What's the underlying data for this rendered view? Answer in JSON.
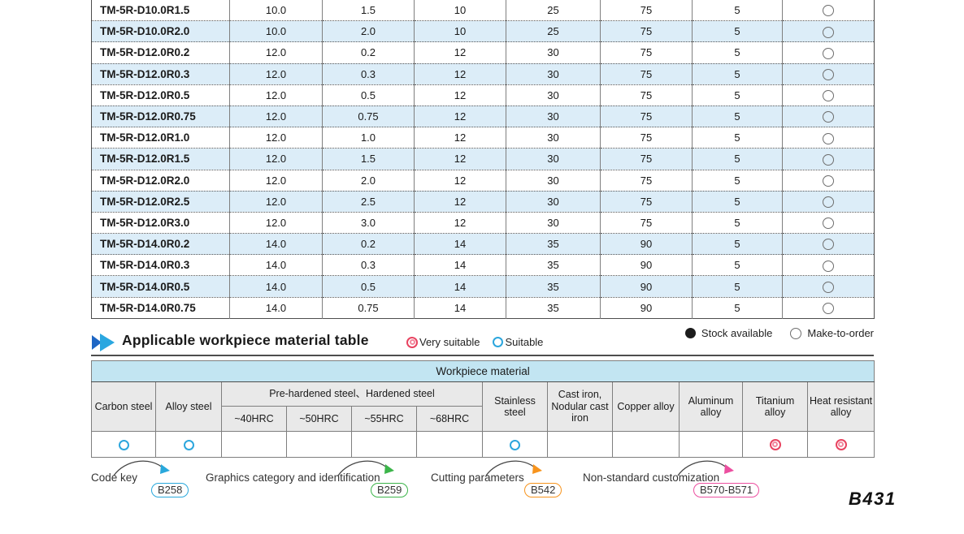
{
  "main_table": {
    "rows": [
      {
        "cells": [
          "TM-5R-D10.0R1.5",
          "10.0",
          "1.5",
          "10",
          "25",
          "75",
          "5"
        ],
        "stock": "make_to_order"
      },
      {
        "cells": [
          "TM-5R-D10.0R2.0",
          "10.0",
          "2.0",
          "10",
          "25",
          "75",
          "5"
        ],
        "stock": "make_to_order"
      },
      {
        "cells": [
          "TM-5R-D12.0R0.2",
          "12.0",
          "0.2",
          "12",
          "30",
          "75",
          "5"
        ],
        "stock": "make_to_order"
      },
      {
        "cells": [
          "TM-5R-D12.0R0.3",
          "12.0",
          "0.3",
          "12",
          "30",
          "75",
          "5"
        ],
        "stock": "make_to_order"
      },
      {
        "cells": [
          "TM-5R-D12.0R0.5",
          "12.0",
          "0.5",
          "12",
          "30",
          "75",
          "5"
        ],
        "stock": "make_to_order"
      },
      {
        "cells": [
          "TM-5R-D12.0R0.75",
          "12.0",
          "0.75",
          "12",
          "30",
          "75",
          "5"
        ],
        "stock": "make_to_order"
      },
      {
        "cells": [
          "TM-5R-D12.0R1.0",
          "12.0",
          "1.0",
          "12",
          "30",
          "75",
          "5"
        ],
        "stock": "make_to_order"
      },
      {
        "cells": [
          "TM-5R-D12.0R1.5",
          "12.0",
          "1.5",
          "12",
          "30",
          "75",
          "5"
        ],
        "stock": "make_to_order"
      },
      {
        "cells": [
          "TM-5R-D12.0R2.0",
          "12.0",
          "2.0",
          "12",
          "30",
          "75",
          "5"
        ],
        "stock": "make_to_order"
      },
      {
        "cells": [
          "TM-5R-D12.0R2.5",
          "12.0",
          "2.5",
          "12",
          "30",
          "75",
          "5"
        ],
        "stock": "make_to_order"
      },
      {
        "cells": [
          "TM-5R-D12.0R3.0",
          "12.0",
          "3.0",
          "12",
          "30",
          "75",
          "5"
        ],
        "stock": "make_to_order"
      },
      {
        "cells": [
          "TM-5R-D14.0R0.2",
          "14.0",
          "0.2",
          "14",
          "35",
          "90",
          "5"
        ],
        "stock": "make_to_order"
      },
      {
        "cells": [
          "TM-5R-D14.0R0.3",
          "14.0",
          "0.3",
          "14",
          "35",
          "90",
          "5"
        ],
        "stock": "make_to_order"
      },
      {
        "cells": [
          "TM-5R-D14.0R0.5",
          "14.0",
          "0.5",
          "14",
          "35",
          "90",
          "5"
        ],
        "stock": "make_to_order"
      },
      {
        "cells": [
          "TM-5R-D14.0R0.75",
          "14.0",
          "0.75",
          "14",
          "35",
          "90",
          "5"
        ],
        "stock": "make_to_order"
      }
    ]
  },
  "section": {
    "title": "Applicable workpiece material table",
    "legend": {
      "very_suitable": "Very suitable",
      "suitable": "Suitable"
    },
    "stock_legend": {
      "available": "Stock available",
      "make_to_order": "Make-to-order"
    }
  },
  "workpiece_table": {
    "title": "Workpiece material",
    "col_carbon": "Carbon steel",
    "col_alloy": "Alloy steel",
    "group_prehardened": "Pre-hardened steel、Hardened steel",
    "sub_hrc": [
      "~40HRC",
      "~50HRC",
      "~55HRC",
      "~68HRC"
    ],
    "col_stainless": "Stainless steel",
    "col_cast_iron": "Cast iron, Nodular cast iron",
    "col_copper": "Copper alloy",
    "col_aluminum": "Aluminum alloy",
    "col_titanium": "Titanium alloy",
    "col_heat": "Heat resistant alloy",
    "marks": [
      "suitable",
      "suitable",
      "",
      "",
      "",
      "",
      "suitable",
      "",
      "",
      "",
      "very_suitable",
      "very_suitable"
    ]
  },
  "footer": {
    "links": [
      {
        "label": "Code key",
        "badge": "B258",
        "color": "#29a8dc"
      },
      {
        "label": "Graphics category and identification",
        "badge": "B259",
        "color": "#3cb54a"
      },
      {
        "label": "Cutting parameters",
        "badge": "B542",
        "color": "#f7941d"
      },
      {
        "label": "Non-standard customization",
        "badge": "B570-B571",
        "color": "#ec4fa0"
      }
    ],
    "page_number": "B431"
  },
  "colors": {
    "row_stripe": "#dcedf8",
    "wp_header_blue": "#c2e5f2",
    "wp_header_gray": "#e9e9e9",
    "suitable_mark": "#2ca6dd",
    "very_suitable_mark": "#e84360"
  }
}
